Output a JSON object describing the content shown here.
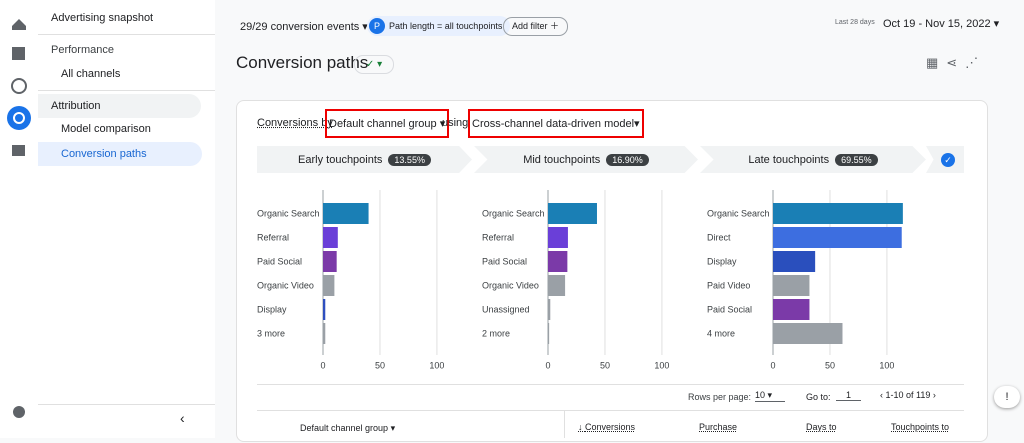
{
  "nav": {
    "title": "Advertising snapshot",
    "sections": [
      {
        "title": "Performance",
        "items": [
          "All channels"
        ]
      },
      {
        "title": "Attribution",
        "items": [
          "Model comparison",
          "Conversion paths"
        ]
      }
    ]
  },
  "toolbar": {
    "events": "29/29 conversion events",
    "chip_icon": "P",
    "chip": "Path length = all touchpoints",
    "add_filter": "Add filter",
    "range_label": "Last 28 days",
    "range": "Oct 19 - Nov 15, 2022"
  },
  "page": {
    "title": "Conversion paths"
  },
  "panel": {
    "by": "Conversions by",
    "dimension": "Default channel group",
    "using": "using",
    "model": "Cross-channel data-driven model",
    "tabs": [
      {
        "label": "Early touchpoints",
        "badge": "13.55%"
      },
      {
        "label": "Mid touchpoints",
        "badge": "16.90%"
      },
      {
        "label": "Late touchpoints",
        "badge": "69.55%"
      }
    ]
  },
  "chart_data": [
    {
      "type": "bar",
      "orientation": "horizontal",
      "categories": [
        "Organic Search",
        "Referral",
        "Paid Social",
        "Organic Video",
        "Display",
        "3 more"
      ],
      "values": [
        40,
        13,
        12,
        10,
        2,
        2
      ],
      "colors": [
        "#1a7fb5",
        "#6a3fd8",
        "#7b3aa8",
        "#9aa0a6",
        "#2e4fbf",
        "#9aa0a6"
      ],
      "xlim": [
        0,
        115
      ],
      "xticks": [
        0,
        50,
        100
      ],
      "grid": true
    },
    {
      "type": "bar",
      "orientation": "horizontal",
      "categories": [
        "Organic Search",
        "Referral",
        "Paid Social",
        "Organic Video",
        "Unassigned",
        "2 more"
      ],
      "values": [
        43,
        17.5,
        17,
        15,
        2,
        1
      ],
      "colors": [
        "#1a7fb5",
        "#6a3fd8",
        "#7b3aa8",
        "#9aa0a6",
        "#9aa0a6",
        "#9aa0a6"
      ],
      "xlim": [
        0,
        115
      ],
      "xticks": [
        0,
        50,
        100
      ],
      "grid": true
    },
    {
      "type": "bar",
      "orientation": "horizontal",
      "categories": [
        "Organic Search",
        "Direct",
        "Display",
        "Paid Video",
        "Paid Social",
        "4 more"
      ],
      "values": [
        114,
        113,
        37,
        32,
        32,
        61
      ],
      "colors": [
        "#1a7fb5",
        "#3d6ee0",
        "#2a4fbd",
        "#9aa0a6",
        "#7b3aa8",
        "#9aa0a6"
      ],
      "xlim": [
        0,
        115
      ],
      "xticks": [
        0,
        50,
        100
      ],
      "grid": true
    }
  ],
  "pagination": {
    "rows_label": "Rows per page:",
    "rows": "10",
    "goto_label": "Go to:",
    "goto": "1",
    "range": "1-10 of 119"
  },
  "table": {
    "headers": [
      "Default channel group",
      "Conversions",
      "Purchase",
      "Days to",
      "Touchpoints to"
    ]
  }
}
